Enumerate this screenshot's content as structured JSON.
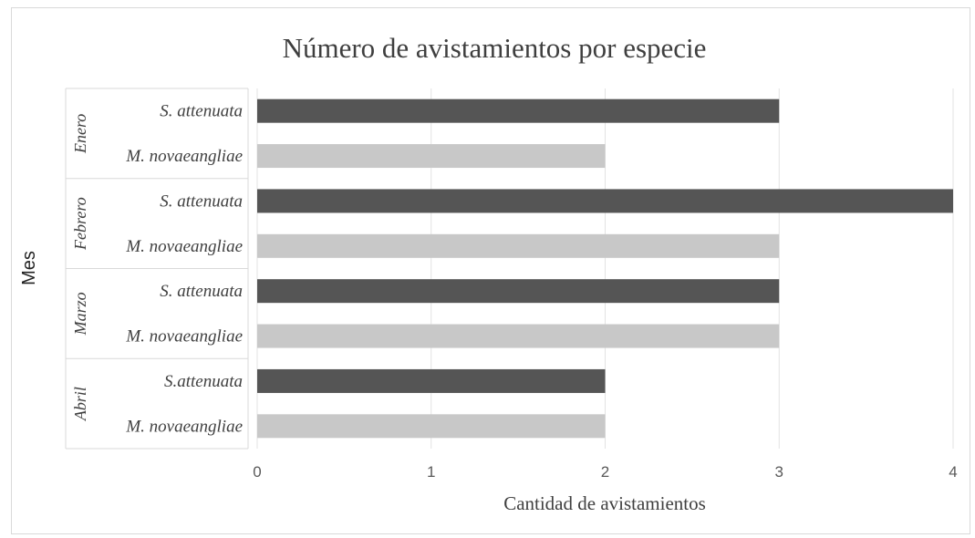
{
  "chart_data": {
    "type": "bar",
    "orientation": "horizontal",
    "title": "Número de avistamientos por especie",
    "xlabel": "Cantidad de avistamientos",
    "ylabel": "Mes",
    "xlim": [
      0,
      4
    ],
    "xticks": [
      0,
      1,
      2,
      3,
      4
    ],
    "grid": true,
    "legend": "none",
    "colors": {
      "S. attenuata": "#555555",
      "M. novaeangliae": "#c8c8c8"
    },
    "groups": [
      {
        "name": "Enero",
        "bars": [
          {
            "label": "S. attenuata",
            "species": "S. attenuata",
            "value": 3
          },
          {
            "label": "M. novaeangliae",
            "species": "M. novaeangliae",
            "value": 2
          }
        ]
      },
      {
        "name": "Febrero",
        "bars": [
          {
            "label": "S. attenuata",
            "species": "S. attenuata",
            "value": 4
          },
          {
            "label": "M. novaeangliae",
            "species": "M. novaeangliae",
            "value": 3
          }
        ]
      },
      {
        "name": "Marzo",
        "bars": [
          {
            "label": "S. attenuata",
            "species": "S. attenuata",
            "value": 3
          },
          {
            "label": "M. novaeangliae",
            "species": "M. novaeangliae",
            "value": 3
          }
        ]
      },
      {
        "name": "Abril",
        "bars": [
          {
            "label": "S.attenuata",
            "species": "S. attenuata",
            "value": 2
          },
          {
            "label": "M. novaeangliae",
            "species": "M. novaeangliae",
            "value": 2
          }
        ]
      }
    ]
  }
}
